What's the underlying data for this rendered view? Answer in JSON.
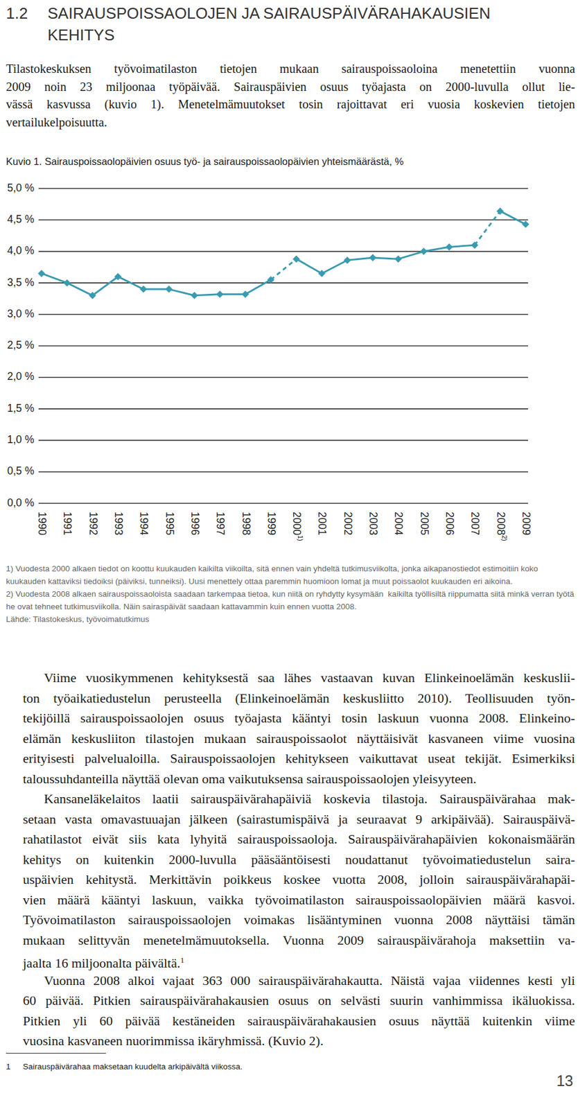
{
  "heading": {
    "number": "1.2",
    "lines": [
      "SAIRAUSPOISSAOLOJEN JA SAIRAUSPÄIVÄRAHAKAUSIEN",
      "KEHITYS"
    ]
  },
  "intro": {
    "lines": [
      "Tilastokeskuksen työvoimatilaston tietojen mukaan sairauspoissaoloina menetettiin vuonna",
      "2009 noin 23 miljoonaa työpäivää. Sairauspäivien osuus työajasta on 2000-luvulla ollut lie-",
      "vässä kasvussa (kuvio 1). Menetelmämuutokset tosin rajoittavat eri vuosia koskevien tietojen",
      "vertailukelpoisuutta."
    ]
  },
  "chart_data": {
    "type": "line",
    "title": "Kuvio 1. Sairauspoissaolopäivien osuus työ- ja sairauspoissaolopäivien yhteismäärästä, %",
    "categories": [
      "1990",
      "1991",
      "1992",
      "1993",
      "1994",
      "1995",
      "1996",
      "1997",
      "1998",
      "1999",
      "2000",
      "2001",
      "2002",
      "2003",
      "2004",
      "2005",
      "2006",
      "2007",
      "2008",
      "2009"
    ],
    "footnote_refs": [
      null,
      null,
      null,
      null,
      null,
      null,
      null,
      null,
      null,
      null,
      "1)",
      null,
      null,
      null,
      null,
      null,
      null,
      null,
      "2)",
      null
    ],
    "series": [
      {
        "color": "#3a9bb0",
        "marker": "diamond",
        "line_style": "solid",
        "values": [
          3.65,
          3.5,
          3.3,
          3.6,
          3.4,
          3.4,
          3.3,
          3.32,
          3.32,
          3.55,
          3.88,
          3.65,
          3.86,
          3.9,
          3.88,
          4.0,
          4.07,
          4.1,
          4.64,
          4.43
        ]
      }
    ],
    "ylim": [
      0,
      5
    ],
    "yticks": [
      {
        "value": 0,
        "label": "0,0 %"
      },
      {
        "value": 0.5,
        "label": "0,5 %"
      },
      {
        "value": 1,
        "label": "1,0 %"
      },
      {
        "value": 1.5,
        "label": "1,5 %"
      },
      {
        "value": 2,
        "label": "2,0 %"
      },
      {
        "value": 2.5,
        "label": "2,5 %"
      },
      {
        "value": 3,
        "label": "3,0 %"
      },
      {
        "value": 3.5,
        "label": "3,5 %"
      },
      {
        "value": 4,
        "label": "4,0 %"
      },
      {
        "value": 4.5,
        "label": "4,5 %"
      },
      {
        "value": 5,
        "label": "5,0 %"
      }
    ],
    "grid": true
  },
  "notes": [
    "1) Vuodesta 2000 alkaen tiedot on koottu kuukauden kaikilta viikoilta, sitä ennen vain yhdeltä tutkimusviikolta, jonka aikapanostiedot estimoitiin koko kuukauden kattaviksi tiedoiksi (päiviksi, tunneiksi). Uusi menettely ottaa paremmin huomioon lomat ja muut poissaolot kuukauden eri aikoina.",
    "2) Vuodesta 2008 alkaen sairauspoissaoloista saadaan tarkempaa tietoa, kun niitä on ryhdytty kysymään  kaikilta työllisiltä riippumatta siitä minkä verran työtä he ovat tehneet tutkimusviikolla. Näin sairaspäivät saadaan kattavammin kuin ennen vuotta 2008.",
    "Lähde: Tilastokeskus, työvoimatutkimus"
  ],
  "body": [
    {
      "lines": [
        "Viime vuosikymmenen kehityksestä saa lähes vastaavan kuvan Elinkeinoelämän keskuslii-",
        "ton työaikatiedustelun perusteella (Elinkeinoelämän keskusliitto 2010). Teollisuuden työn-",
        "tekijöillä sairauspoissaolojen osuus työajasta kääntyi tosin laskuun vuonna 2008. Elinkeino-",
        "elämän keskusliiton tilastojen mukaan sairauspoissaolot näyttäisivät kasvaneen viime vuosina",
        "erityisesti palvelualoilla. Sairauspoissaolojen kehitykseen vaikuttavat useat tekijät. Esimerkiksi",
        "taloussuhdanteilla näyttää olevan oma vaikutuksensa sairauspoissaolojen yleisyyteen."
      ]
    },
    {
      "lines": [
        "Kansaneläkelaitos laatii sairauspäivärahapäiviä koskevia tilastoja. Sairauspäivärahaa mak-",
        "setaan vasta omavastuuajan jälkeen (sairastumispäivä ja seuraavat 9 arkipäivää). Sairauspäivä-",
        "rahatilastot eivät siis kata lyhyitä sairauspoissaoloja. Sairauspäivärahapäivien kokonaismäärän",
        "kehitys on kuitenkin 2000-luvulla pääsääntöisesti noudattanut työvoimatiedustelun saira-",
        "uspäivien kehitystä. Merkittävin poikkeus koskee vuotta 2008, jolloin sairauspäivärahapäi-",
        "vien määrä kääntyi laskuun, vaikka työvoimatilaston sairauspoissaolopäivien määrä kasvoi.",
        "Työvoimatilaston sairauspoissaolojen voimakas lisääntyminen vuonna 2008 näyttäisi tämän",
        "mukaan selittyvän menetelmämuutoksella. Vuonna 2009 sairauspäivärahoja maksettiin va-",
        "jaalta 16 miljoonalta päivältä."
      ],
      "sup": "1"
    },
    {
      "lines": [
        "Vuonna 2008 alkoi vajaat 363 000 sairauspäivärahakautta. Näistä vajaa viidennes kesti yli",
        "60 päivää. Pitkien sairauspäivärahakausien osuus on selvästi suurin vanhimmissa ikäluokissa.",
        "Pitkien yli 60 päivää kestäneiden sairauspäivärahakausien osuus näyttää kuitenkin viime",
        "vuosina kasvaneen nuorimmissa ikäryhmissä. (Kuvio 2)."
      ]
    }
  ],
  "footnote": {
    "number": "1",
    "text": "Sairauspäivärahaa maksetaan kuudelta arkipäivältä viikossa."
  },
  "page_number": "13"
}
